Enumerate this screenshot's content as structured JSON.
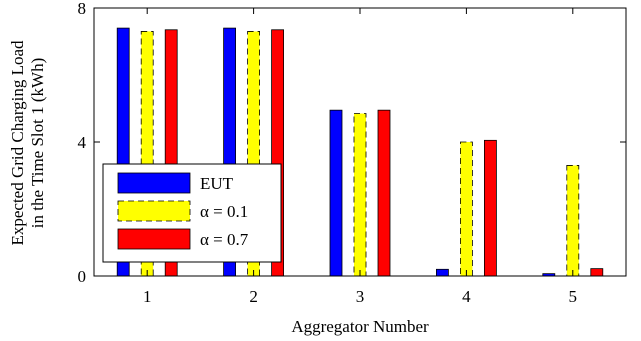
{
  "chart_data": {
    "type": "bar",
    "title": "",
    "xlabel": "Aggregator Number",
    "ylabel_lines": [
      "Expected Grid Charging Load",
      "in the Time Slot 1 (kWh)"
    ],
    "categories": [
      "1",
      "2",
      "3",
      "4",
      "5"
    ],
    "ylim": [
      0,
      8
    ],
    "yticks": [
      0,
      4,
      8
    ],
    "grid": false,
    "legend_position": "bottom-left",
    "series": [
      {
        "name": "EUT",
        "color": "#0000ff",
        "dashed": false,
        "values": [
          7.4,
          7.4,
          4.95,
          0.2,
          0.07
        ]
      },
      {
        "name": "α = 0.1",
        "color": "#ffff00",
        "dashed": true,
        "values": [
          7.3,
          7.3,
          4.85,
          4.0,
          3.3
        ]
      },
      {
        "name": "α = 0.7",
        "color": "#ff0000",
        "dashed": false,
        "values": [
          7.35,
          7.35,
          4.95,
          4.05,
          0.22
        ]
      }
    ]
  }
}
